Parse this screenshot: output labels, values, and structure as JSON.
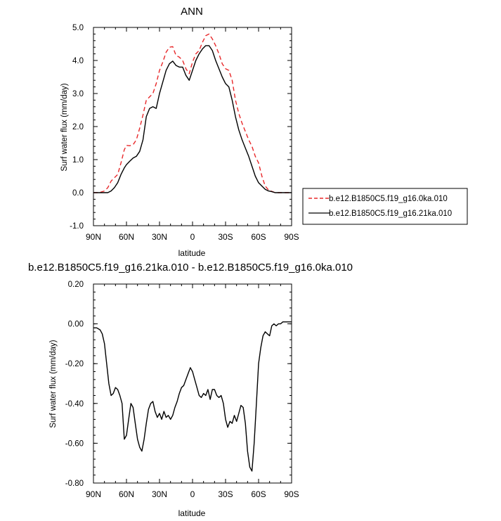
{
  "chart_data": [
    {
      "type": "line",
      "title": "ANN",
      "xlabel": "latitude",
      "ylabel": "Surf water flux (mm/day)",
      "xlim": [
        90,
        -90
      ],
      "ylim": [
        -1.0,
        5.0
      ],
      "x_ticks": [
        "90N",
        "60N",
        "30N",
        "0",
        "30S",
        "60S",
        "90S"
      ],
      "x_tick_values": [
        90,
        60,
        30,
        0,
        -30,
        -60,
        -90
      ],
      "y_ticks": [
        "-1.0",
        "0.0",
        "1.0",
        "2.0",
        "3.0",
        "4.0",
        "5.0"
      ],
      "y_tick_values": [
        -1,
        0,
        1,
        2,
        3,
        4,
        5
      ],
      "legend_position": "right",
      "series": [
        {
          "name": "b.e12.B1850C5.f19_g16.0ka.010",
          "color": "#e8282a",
          "dash": "dashed",
          "x": [
            90,
            85,
            80,
            77,
            74,
            71,
            68,
            65,
            62,
            60,
            57,
            54,
            51,
            48,
            45,
            42,
            39,
            36,
            33,
            30,
            27,
            24,
            21,
            18,
            15,
            12,
            9,
            6,
            3,
            0,
            -3,
            -6,
            -9,
            -12,
            -15,
            -18,
            -21,
            -24,
            -27,
            -30,
            -33,
            -36,
            -39,
            -42,
            -45,
            -48,
            -51,
            -54,
            -57,
            -60,
            -63,
            -66,
            -69,
            -72,
            -75,
            -78,
            -81,
            -84,
            -87,
            -90
          ],
          "values": [
            0.0,
            0.0,
            0.05,
            0.15,
            0.35,
            0.45,
            0.55,
            0.9,
            1.3,
            1.43,
            1.42,
            1.45,
            1.6,
            1.95,
            2.35,
            2.8,
            2.9,
            3.0,
            3.3,
            3.7,
            3.95,
            4.25,
            4.4,
            4.42,
            4.15,
            4.1,
            4.0,
            3.75,
            3.6,
            3.95,
            4.2,
            4.3,
            4.55,
            4.75,
            4.8,
            4.65,
            4.45,
            4.2,
            3.9,
            3.75,
            3.7,
            3.4,
            2.8,
            2.4,
            2.1,
            1.85,
            1.6,
            1.4,
            1.1,
            0.9,
            0.5,
            0.2,
            0.08,
            0.04,
            0.0,
            0.0,
            0.0,
            0.0,
            0.0,
            0.0
          ]
        },
        {
          "name": "b.e12.B1850C5.f19_g16.21ka.010",
          "color": "#000000",
          "dash": "solid",
          "x": [
            90,
            85,
            80,
            77,
            74,
            71,
            68,
            65,
            62,
            60,
            57,
            54,
            51,
            48,
            45,
            42,
            39,
            36,
            33,
            30,
            27,
            24,
            21,
            18,
            15,
            12,
            9,
            6,
            3,
            0,
            -3,
            -6,
            -9,
            -12,
            -15,
            -18,
            -21,
            -24,
            -27,
            -30,
            -33,
            -36,
            -39,
            -42,
            -45,
            -48,
            -51,
            -54,
            -57,
            -60,
            -63,
            -66,
            -69,
            -72,
            -75,
            -78,
            -81,
            -84,
            -87,
            -90
          ],
          "values": [
            0.0,
            0.0,
            0.0,
            0.0,
            0.05,
            0.15,
            0.3,
            0.55,
            0.75,
            0.85,
            0.95,
            1.05,
            1.1,
            1.25,
            1.6,
            2.3,
            2.55,
            2.6,
            2.55,
            3.0,
            3.35,
            3.7,
            3.9,
            3.98,
            3.85,
            3.8,
            3.8,
            3.55,
            3.4,
            3.7,
            4.0,
            4.2,
            4.35,
            4.45,
            4.45,
            4.3,
            4.0,
            3.75,
            3.5,
            3.3,
            3.2,
            2.8,
            2.3,
            1.9,
            1.6,
            1.35,
            1.1,
            0.8,
            0.5,
            0.3,
            0.2,
            0.1,
            0.05,
            0.03,
            0.0,
            0.0,
            0.0,
            0.0,
            0.0,
            0.0
          ]
        }
      ]
    },
    {
      "type": "line",
      "title": "b.e12.B1850C5.f19_g16.21ka.010 - b.e12.B1850C5.f19_g16.0ka.010",
      "xlabel": "latitude",
      "ylabel": "Surf water flux (mm/day)",
      "xlim": [
        90,
        -90
      ],
      "ylim": [
        -0.8,
        0.2
      ],
      "x_ticks": [
        "90N",
        "60N",
        "30N",
        "0",
        "30S",
        "60S",
        "90S"
      ],
      "x_tick_values": [
        90,
        60,
        30,
        0,
        -30,
        -60,
        -90
      ],
      "y_ticks": [
        "-0.80",
        "-0.60",
        "-0.40",
        "-0.20",
        "0.00",
        "0.20"
      ],
      "y_tick_values": [
        -0.8,
        -0.6,
        -0.4,
        -0.2,
        0.0,
        0.2
      ],
      "series": [
        {
          "color": "#000000",
          "dash": "solid",
          "x": [
            90,
            87,
            84,
            82,
            80,
            78,
            76,
            74,
            72,
            70,
            68,
            66,
            64,
            62,
            60,
            58,
            56,
            54,
            52,
            50,
            48,
            46,
            44,
            42,
            40,
            38,
            36,
            34,
            32,
            30,
            28,
            26,
            24,
            22,
            20,
            18,
            16,
            14,
            12,
            10,
            8,
            6,
            4,
            2,
            1,
            0,
            -2,
            -4,
            -6,
            -8,
            -10,
            -12,
            -14,
            -16,
            -18,
            -20,
            -22,
            -24,
            -26,
            -28,
            -30,
            -32,
            -34,
            -36,
            -38,
            -40,
            -42,
            -44,
            -46,
            -48,
            -50,
            -52,
            -54,
            -56,
            -58,
            -60,
            -62,
            -64,
            -66,
            -68,
            -70,
            -72,
            -74,
            -76,
            -78,
            -80,
            -82,
            -84,
            -86,
            -88,
            -90
          ],
          "values": [
            -0.02,
            -0.02,
            -0.03,
            -0.05,
            -0.1,
            -0.2,
            -0.3,
            -0.36,
            -0.35,
            -0.32,
            -0.33,
            -0.36,
            -0.4,
            -0.58,
            -0.56,
            -0.48,
            -0.4,
            -0.42,
            -0.5,
            -0.58,
            -0.62,
            -0.64,
            -0.58,
            -0.5,
            -0.43,
            -0.4,
            -0.39,
            -0.44,
            -0.47,
            -0.45,
            -0.48,
            -0.44,
            -0.47,
            -0.46,
            -0.48,
            -0.46,
            -0.42,
            -0.39,
            -0.35,
            -0.32,
            -0.31,
            -0.28,
            -0.25,
            -0.22,
            -0.23,
            -0.24,
            -0.28,
            -0.32,
            -0.36,
            -0.37,
            -0.35,
            -0.36,
            -0.33,
            -0.38,
            -0.33,
            -0.33,
            -0.36,
            -0.37,
            -0.36,
            -0.4,
            -0.48,
            -0.52,
            -0.49,
            -0.5,
            -0.46,
            -0.49,
            -0.45,
            -0.41,
            -0.42,
            -0.5,
            -0.64,
            -0.72,
            -0.74,
            -0.6,
            -0.4,
            -0.2,
            -0.12,
            -0.06,
            -0.04,
            -0.05,
            -0.06,
            -0.01,
            0.0,
            -0.01,
            0.0,
            0.0,
            0.01,
            0.01,
            0.01,
            0.01,
            0.01
          ]
        }
      ]
    }
  ]
}
